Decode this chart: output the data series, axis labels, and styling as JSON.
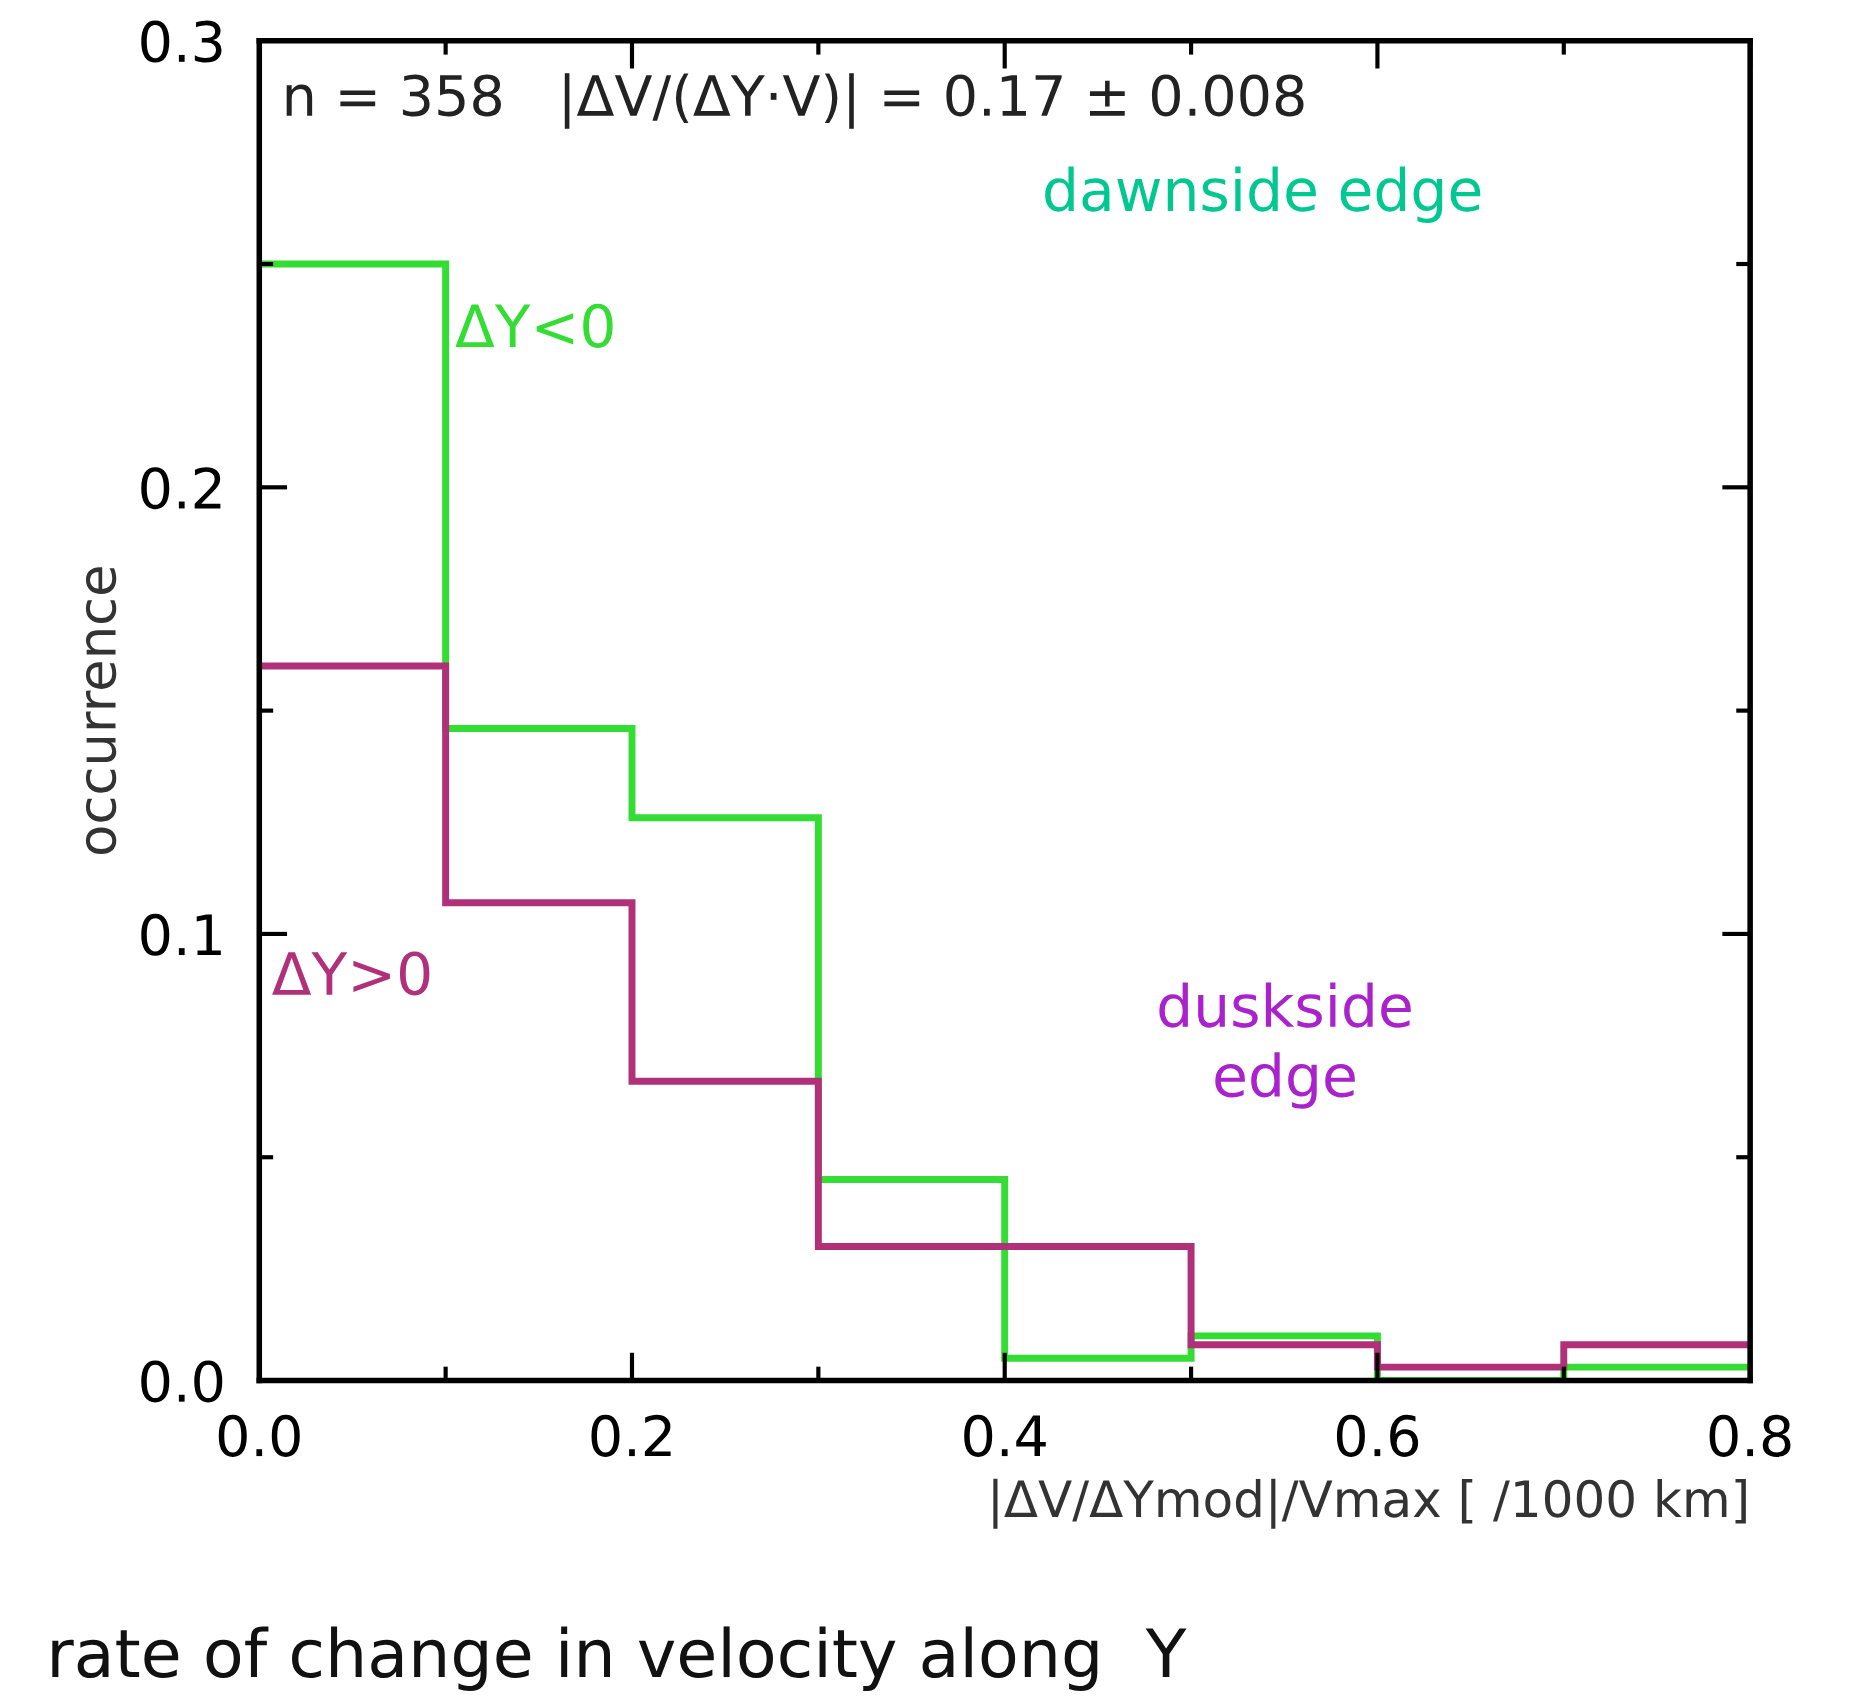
{
  "chart_data": {
    "type": "histogram",
    "xlabel": "|ΔV/ΔYmod|/Vmax [ /1000 km]",
    "ylabel": "occurrence",
    "bins": [
      0,
      0.1,
      0.2,
      0.3,
      0.4,
      0.5,
      0.6,
      0.7,
      0.8
    ],
    "series": [
      {
        "name": "ΔY<0",
        "color": "#33dd33",
        "values": [
          0.25,
          0.146,
          0.126,
          0.045,
          0.005,
          0.01,
          0.0,
          0.003
        ]
      },
      {
        "name": "ΔY>0",
        "color": "#b0307a",
        "values": [
          0.16,
          0.107,
          0.067,
          0.03,
          0.03,
          0.008,
          0.003,
          0.008
        ]
      }
    ],
    "xlim": [
      0,
      0.8
    ],
    "ylim": [
      0,
      0.3
    ],
    "xticks": [
      {
        "value": 0,
        "label": "0.0"
      },
      {
        "value": 0.2,
        "label": "0.2"
      },
      {
        "value": 0.4,
        "label": "0.4"
      },
      {
        "value": 0.6,
        "label": "0.6"
      },
      {
        "value": 0.8,
        "label": "0.8"
      }
    ],
    "yticks": [
      {
        "value": 0,
        "label": "0.0"
      },
      {
        "value": 0.1,
        "label": "0.1"
      },
      {
        "value": 0.2,
        "label": "0.2"
      },
      {
        "value": 0.3,
        "label": "0.3"
      }
    ],
    "annotations": [
      "n = 358   |ΔV/(ΔY·V)| = 0.17 ± 0.008",
      "dawnside edge",
      "duskside\nedge",
      "rate of change in velocity along  Y"
    ],
    "grid": false,
    "legend": false
  }
}
